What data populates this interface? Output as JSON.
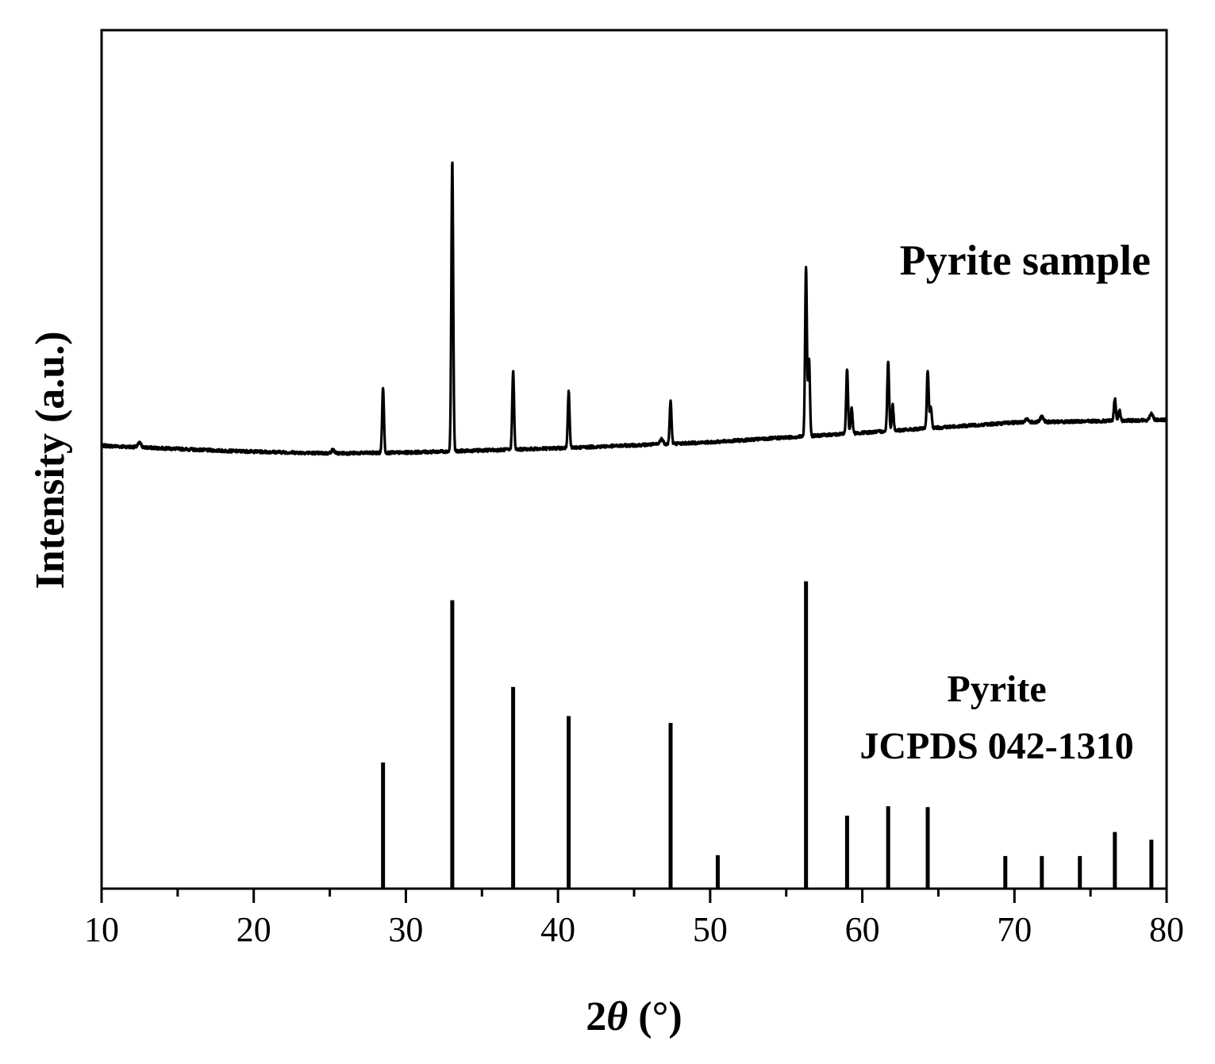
{
  "chart_data": {
    "type": "line",
    "xlabel_prefix": "2",
    "xlabel_symbol": "θ",
    "xlabel_suffix": " (°)",
    "ylabel": "Intensity (a.u.)",
    "xlim": [
      10,
      80
    ],
    "ylim": [
      0,
      100
    ],
    "x_ticks": [
      10,
      20,
      30,
      40,
      50,
      60,
      70,
      80
    ],
    "grid": false,
    "colors": {
      "line": "#000000",
      "axis": "#000000"
    },
    "series": [
      {
        "kind": "line",
        "baseline": [
          [
            10,
            51.6
          ],
          [
            18,
            51.0
          ],
          [
            25,
            50.7
          ],
          [
            30,
            50.8
          ],
          [
            40,
            51.3
          ],
          [
            50,
            52.0
          ],
          [
            60,
            53.1
          ],
          [
            70,
            54.3
          ],
          [
            80,
            54.6
          ]
        ],
        "bumps": [
          [
            12.5,
            0.5
          ],
          [
            25.2,
            0.4
          ],
          [
            46.8,
            0.6
          ],
          [
            70.8,
            0.4
          ],
          [
            71.8,
            0.6
          ],
          [
            79.0,
            0.8
          ]
        ],
        "peaks": [
          [
            28.5,
            7.6
          ],
          [
            33.05,
            34.0
          ],
          [
            37.05,
            9.2
          ],
          [
            40.7,
            6.5
          ],
          [
            47.4,
            5.0
          ],
          [
            56.3,
            19.7
          ],
          [
            56.5,
            9.0
          ],
          [
            59.0,
            7.6
          ],
          [
            59.3,
            3.0
          ],
          [
            61.7,
            8.2
          ],
          [
            62.0,
            3.0
          ],
          [
            64.3,
            6.8
          ],
          [
            64.5,
            2.5
          ],
          [
            76.6,
            2.6
          ],
          [
            76.9,
            1.3
          ]
        ]
      },
      {
        "kind": "stick",
        "x": [
          28.5,
          33.05,
          37.05,
          40.7,
          47.4,
          50.5,
          56.3,
          59.0,
          61.7,
          64.3,
          69.4,
          71.8,
          74.3,
          76.6,
          79.0
        ],
        "y": [
          14.7,
          33.6,
          23.5,
          20.1,
          19.3,
          3.9,
          35.8,
          8.5,
          9.6,
          9.5,
          3.8,
          3.8,
          3.8,
          6.6,
          5.7
        ]
      }
    ],
    "annotations": {
      "sample_label": "Pyrite sample",
      "ref_line1": "Pyrite",
      "ref_line2": "JCPDS 042-1310"
    }
  }
}
